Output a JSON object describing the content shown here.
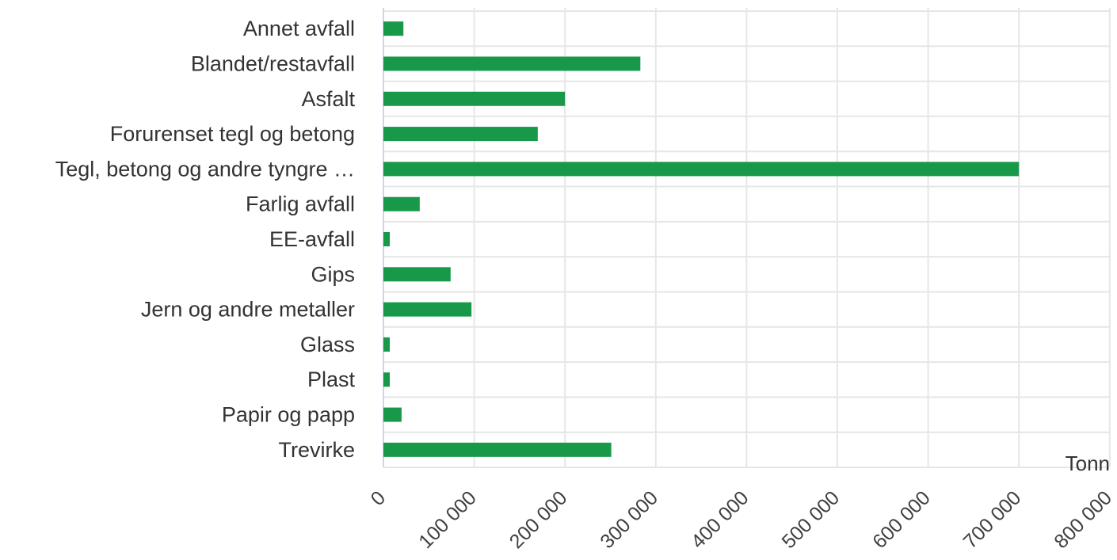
{
  "chart_data": {
    "type": "bar",
    "orientation": "horizontal",
    "categories": [
      "Annet avfall",
      "Blandet/restavfall",
      "Asfalt",
      "Forurenset tegl og betong",
      "Tegl, betong og andre tyngre …",
      "Farlig avfall",
      "EE-avfall",
      "Gips",
      "Jern og andre metaller",
      "Glass",
      "Plast",
      "Papir og papp",
      "Trevirke"
    ],
    "values": [
      22000,
      283000,
      200000,
      170000,
      700000,
      40000,
      7000,
      74000,
      97000,
      7000,
      7000,
      20000,
      251000
    ],
    "xlim": [
      0,
      800000
    ],
    "xticks": [
      0,
      100000,
      200000,
      300000,
      400000,
      500000,
      600000,
      700000,
      800000
    ],
    "xtick_labels": [
      "0",
      "100 000",
      "200 000",
      "300 000",
      "400 000",
      "500 000",
      "600 000",
      "700 000",
      "800 000"
    ],
    "unit_label": "Tonn",
    "bar_color": "#18994a",
    "grid": true,
    "grid_color": "#e6e6e6",
    "axis_color": "#ccd6eb"
  }
}
